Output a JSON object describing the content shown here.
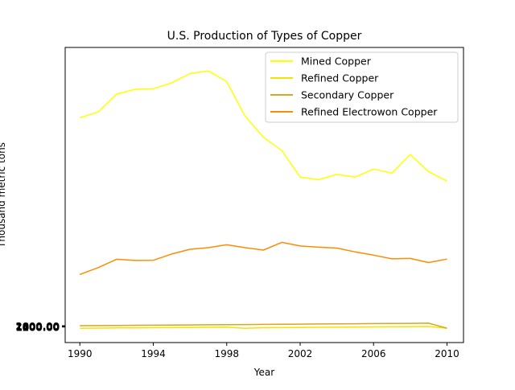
{
  "chart_data": {
    "type": "line",
    "title": "U.S. Production of Types of Copper",
    "xlabel": "Year",
    "ylabel": "Thousand metric tons",
    "x": [
      1990,
      1991,
      1992,
      1993,
      1994,
      1995,
      1996,
      1997,
      1998,
      1999,
      2000,
      2001,
      2002,
      2003,
      2004,
      2005,
      2006,
      2007,
      2008,
      2009,
      2010
    ],
    "x_ticks": [
      "1990",
      "1994",
      "1998",
      "2002",
      "2006",
      "2010"
    ],
    "y_ticks": [
      "1000.00",
      "1200.00",
      "1400.00",
      "1600.00",
      "1800.00",
      "2000.00"
    ],
    "xlim": [
      1989.2,
      2010.9
    ],
    "ylim": [
      -107,
      2117
    ],
    "grid": false,
    "legend_position": "top-right",
    "series": [
      {
        "name": "Mined Copper",
        "color": "#ffff00",
        "values": [
          1587,
          1631,
          1765,
          1801,
          1806,
          1850,
          1920,
          1940,
          1860,
          1600,
          1440,
          1340,
          1140,
          1120,
          1160,
          1140,
          1200,
          1170,
          1310,
          1180,
          1110
        ]
      },
      {
        "name": "Refined Copper",
        "color": "#f2e600",
        "values": [
          1,
          2,
          3,
          4,
          5,
          6,
          7,
          8,
          9,
          1,
          5,
          6,
          7,
          8,
          9,
          10,
          11,
          12,
          13,
          14,
          1
        ]
      },
      {
        "name": "Secondary Copper",
        "color": "#daa520",
        "values": [
          20,
          21,
          22,
          23,
          24,
          25,
          26,
          27,
          28,
          29,
          30,
          31,
          32,
          33,
          34,
          35,
          36,
          37,
          38,
          39,
          1
        ]
      },
      {
        "name": "Refined Electrowon Copper",
        "color": "#ff8c00",
        "values": [
          406,
          458,
          521,
          512,
          513,
          560,
          596,
          608,
          630,
          608,
          590,
          648,
          621,
          612,
          605,
          576,
          552,
          524,
          527,
          496,
          522
        ]
      }
    ]
  }
}
